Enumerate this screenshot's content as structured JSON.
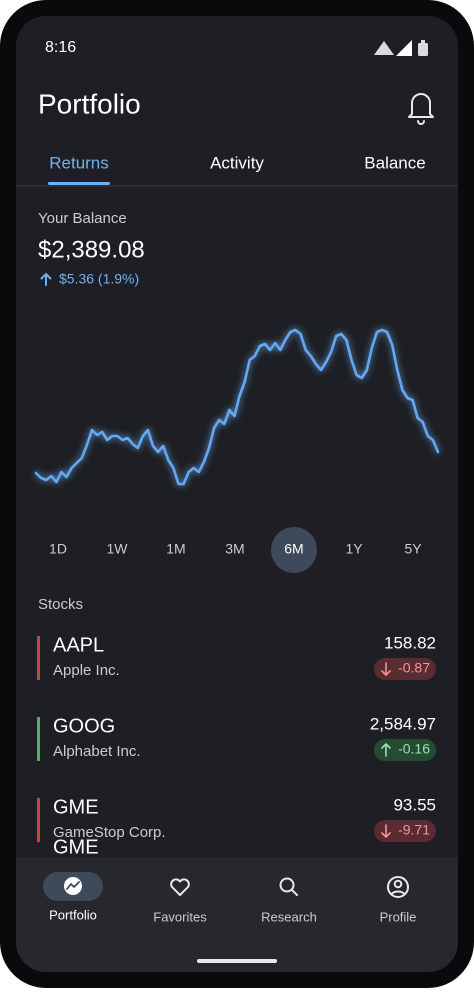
{
  "status_bar": {
    "time": "8:16"
  },
  "header": {
    "title": "Portfolio"
  },
  "tabs": [
    "Returns",
    "Activity",
    "Balance"
  ],
  "balance": {
    "label": "Your Balance",
    "amount": "$2,389.08",
    "change": "$5.36 (1.9%)"
  },
  "chart": {
    "type": "line",
    "color": "#64a8f0",
    "values": [
      27,
      22,
      20,
      24,
      18,
      28,
      23,
      32,
      37,
      42,
      55,
      70,
      65,
      68,
      60,
      64,
      64,
      60,
      62,
      56,
      52,
      64,
      70,
      54,
      48,
      54,
      40,
      32,
      16,
      16,
      28,
      32,
      28,
      38,
      52,
      72,
      80,
      76,
      90,
      84,
      104,
      118,
      140,
      144,
      154,
      156,
      150,
      157,
      150,
      160,
      168,
      170,
      166,
      150,
      144,
      136,
      130,
      138,
      148,
      164,
      166,
      160,
      140,
      125,
      122,
      130,
      152,
      168,
      170,
      168,
      155,
      130,
      110,
      102,
      100,
      82,
      78,
      64,
      60,
      48
    ]
  },
  "ranges": [
    "1D",
    "1W",
    "1M",
    "3M",
    "6M",
    "1Y",
    "5Y"
  ],
  "stocks": {
    "title": "Stocks",
    "items": [
      {
        "symbol": "AAPL",
        "company": "Apple Inc.",
        "price": "158.82",
        "change": "-0.87"
      },
      {
        "symbol": "GOOG",
        "company": "Alphabet Inc.",
        "price": "2,584.97",
        "change": "-0.16"
      },
      {
        "symbol": "GME",
        "company": "GameStop Corp.",
        "price": "93.55",
        "change": "-9.71"
      },
      {
        "symbol": "GME"
      }
    ]
  },
  "nav": [
    "Portfolio",
    "Favorites",
    "Research",
    "Profile"
  ]
}
